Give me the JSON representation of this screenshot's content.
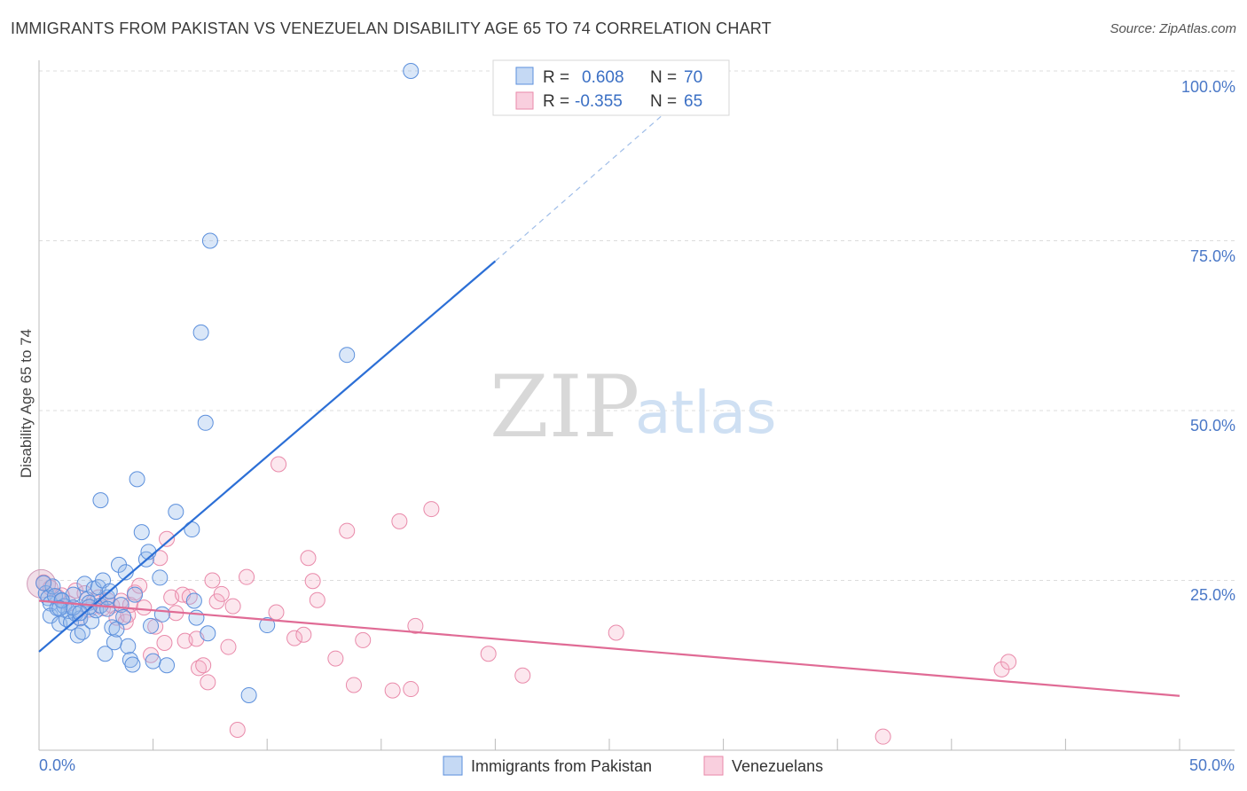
{
  "title": "IMMIGRANTS FROM PAKISTAN VS VENEZUELAN DISABILITY AGE 65 TO 74 CORRELATION CHART",
  "source": "Source: ZipAtlas.com",
  "watermark": {
    "zip": "ZIP",
    "atlas": "atlas"
  },
  "colors": {
    "blue": "#5b8fdc",
    "blue_fill": "rgba(150,185,235,0.35)",
    "blue_line": "#2c6fd6",
    "pink": "#e98aaa",
    "pink_fill": "rgba(245,175,200,0.30)",
    "pink_line": "#e06b95",
    "grid": "#dcdcdc",
    "tick": "#4a78c7"
  },
  "legend_top": {
    "row1": {
      "r_label": "R =",
      "r_value": "0.608",
      "n_label": "N =",
      "n_value": "70"
    },
    "row2": {
      "r_label": "R =",
      "r_value": "-0.355",
      "n_label": "N =",
      "n_value": "65"
    }
  },
  "chart_data": {
    "type": "scatter",
    "title": "IMMIGRANTS FROM PAKISTAN VS VENEZUELAN DISABILITY AGE 65 TO 74 CORRELATION CHART",
    "xlabel": "",
    "ylabel": "Disability Age 65 to 74",
    "xlim": [
      0,
      50
    ],
    "ylim": [
      0,
      100
    ],
    "x_tick_labels": [
      "0.0%",
      "50.0%"
    ],
    "y_tick_labels": [
      "100.0%",
      "75.0%",
      "50.0%",
      "25.0%"
    ],
    "y_gridlines": [
      25,
      50,
      75,
      100
    ],
    "legend": [
      "Immigrants from Pakistan",
      "Venezuelans"
    ],
    "series": [
      {
        "name": "Immigrants from Pakistan",
        "color": "#5b8fdc",
        "r": 0.608,
        "n": 70,
        "trendline": {
          "x": [
            0,
            20
          ],
          "y": [
            14.5,
            72
          ],
          "dashed_x": [
            20,
            27.5
          ],
          "dashed_y": [
            72,
            94
          ]
        },
        "points": [
          [
            0.3,
            23.1
          ],
          [
            0.4,
            22.4
          ],
          [
            0.5,
            21.6
          ],
          [
            0.5,
            19.8
          ],
          [
            0.6,
            24.1
          ],
          [
            0.7,
            22.7
          ],
          [
            0.8,
            20.9
          ],
          [
            0.9,
            18.6
          ],
          [
            1.0,
            22.0
          ],
          [
            1.1,
            21.2
          ],
          [
            1.2,
            19.3
          ],
          [
            1.3,
            20.5
          ],
          [
            1.4,
            18.8
          ],
          [
            1.5,
            22.9
          ],
          [
            1.6,
            20.1
          ],
          [
            1.7,
            16.9
          ],
          [
            1.8,
            19.4
          ],
          [
            1.9,
            17.4
          ],
          [
            2.0,
            24.5
          ],
          [
            2.1,
            22.2
          ],
          [
            2.2,
            21.7
          ],
          [
            2.3,
            19.0
          ],
          [
            2.4,
            23.8
          ],
          [
            2.5,
            20.6
          ],
          [
            2.6,
            24.0
          ],
          [
            2.7,
            21.3
          ],
          [
            2.8,
            25.0
          ],
          [
            2.9,
            14.2
          ],
          [
            3.0,
            22.5
          ],
          [
            3.1,
            23.4
          ],
          [
            3.2,
            18.1
          ],
          [
            3.3,
            15.9
          ],
          [
            3.4,
            17.8
          ],
          [
            3.5,
            27.3
          ],
          [
            3.6,
            21.4
          ],
          [
            3.7,
            19.6
          ],
          [
            3.8,
            26.2
          ],
          [
            3.9,
            15.3
          ],
          [
            4.0,
            13.3
          ],
          [
            4.1,
            12.6
          ],
          [
            4.2,
            22.9
          ],
          [
            4.3,
            39.9
          ],
          [
            4.5,
            32.1
          ],
          [
            4.7,
            28.1
          ],
          [
            4.8,
            29.2
          ],
          [
            4.9,
            18.3
          ],
          [
            5.0,
            13.1
          ],
          [
            5.3,
            25.4
          ],
          [
            5.4,
            20.0
          ],
          [
            5.6,
            12.5
          ],
          [
            6.0,
            35.1
          ],
          [
            6.7,
            32.5
          ],
          [
            6.8,
            22.0
          ],
          [
            6.9,
            19.5
          ],
          [
            7.1,
            61.5
          ],
          [
            7.3,
            48.2
          ],
          [
            7.4,
            17.2
          ],
          [
            7.5,
            75.0
          ],
          [
            9.2,
            8.1
          ],
          [
            10.0,
            18.4
          ],
          [
            13.5,
            58.2
          ],
          [
            16.3,
            100.0
          ],
          [
            2.7,
            36.8
          ],
          [
            1.0,
            22.1
          ],
          [
            0.2,
            24.6
          ],
          [
            1.5,
            21.0
          ],
          [
            2.2,
            21.1
          ],
          [
            3.0,
            20.8
          ],
          [
            0.9,
            20.9
          ],
          [
            1.8,
            20.2
          ]
        ]
      },
      {
        "name": "Venezuelans",
        "color": "#e98aaa",
        "r": -0.355,
        "n": 65,
        "trendline": {
          "x": [
            0,
            50
          ],
          "y": [
            22,
            8
          ]
        },
        "points": [
          [
            0.2,
            24.7
          ],
          [
            0.5,
            23.9
          ],
          [
            0.8,
            22.6
          ],
          [
            1.0,
            22.8
          ],
          [
            1.3,
            21.6
          ],
          [
            1.6,
            23.5
          ],
          [
            1.8,
            19.4
          ],
          [
            2.0,
            23.1
          ],
          [
            2.2,
            20.7
          ],
          [
            2.4,
            21.9
          ],
          [
            2.6,
            22.5
          ],
          [
            2.8,
            20.9
          ],
          [
            3.0,
            22.1
          ],
          [
            3.2,
            21.3
          ],
          [
            3.4,
            19.5
          ],
          [
            3.6,
            22.0
          ],
          [
            3.8,
            18.9
          ],
          [
            4.0,
            21.4
          ],
          [
            4.2,
            23.2
          ],
          [
            4.4,
            24.2
          ],
          [
            4.6,
            21.0
          ],
          [
            4.9,
            14.0
          ],
          [
            5.1,
            18.2
          ],
          [
            5.3,
            28.3
          ],
          [
            5.5,
            15.8
          ],
          [
            5.6,
            31.1
          ],
          [
            5.8,
            22.5
          ],
          [
            6.0,
            20.2
          ],
          [
            6.3,
            22.9
          ],
          [
            6.4,
            16.1
          ],
          [
            6.6,
            22.6
          ],
          [
            6.9,
            16.4
          ],
          [
            7.0,
            12.1
          ],
          [
            7.2,
            12.5
          ],
          [
            7.4,
            10.0
          ],
          [
            7.6,
            25.0
          ],
          [
            7.8,
            21.9
          ],
          [
            8.0,
            23.0
          ],
          [
            8.3,
            15.2
          ],
          [
            8.5,
            21.2
          ],
          [
            8.7,
            3.0
          ],
          [
            9.1,
            25.5
          ],
          [
            10.4,
            20.3
          ],
          [
            10.5,
            42.1
          ],
          [
            11.2,
            16.5
          ],
          [
            11.6,
            17.0
          ],
          [
            11.8,
            28.3
          ],
          [
            12.0,
            24.9
          ],
          [
            12.2,
            22.1
          ],
          [
            13.0,
            13.5
          ],
          [
            13.5,
            32.3
          ],
          [
            13.8,
            9.6
          ],
          [
            14.2,
            16.2
          ],
          [
            15.5,
            8.8
          ],
          [
            15.8,
            33.7
          ],
          [
            16.3,
            9.0
          ],
          [
            16.5,
            18.3
          ],
          [
            17.2,
            35.5
          ],
          [
            19.7,
            14.2
          ],
          [
            21.2,
            11.0
          ],
          [
            25.3,
            17.3
          ],
          [
            37.0,
            2.0
          ],
          [
            42.2,
            11.9
          ],
          [
            42.5,
            13.0
          ],
          [
            3.9,
            19.9
          ]
        ]
      }
    ]
  }
}
